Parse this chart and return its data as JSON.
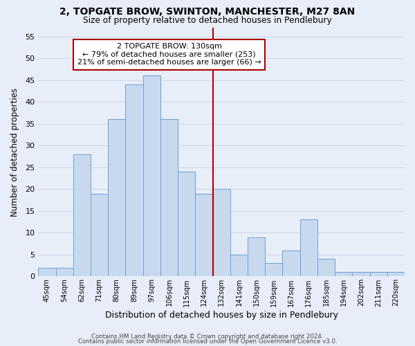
{
  "title": "2, TOPGATE BROW, SWINTON, MANCHESTER, M27 8AN",
  "subtitle": "Size of property relative to detached houses in Pendlebury",
  "xlabel": "Distribution of detached houses by size in Pendlebury",
  "ylabel": "Number of detached properties",
  "categories": [
    "45sqm",
    "54sqm",
    "62sqm",
    "71sqm",
    "80sqm",
    "89sqm",
    "97sqm",
    "106sqm",
    "115sqm",
    "124sqm",
    "132sqm",
    "141sqm",
    "150sqm",
    "159sqm",
    "167sqm",
    "176sqm",
    "185sqm",
    "194sqm",
    "202sqm",
    "211sqm",
    "220sqm"
  ],
  "values": [
    2,
    2,
    28,
    19,
    36,
    44,
    46,
    36,
    24,
    19,
    20,
    5,
    9,
    3,
    6,
    13,
    4,
    1,
    1,
    1,
    1
  ],
  "bar_color": "#c8d9ee",
  "bar_edge_color": "#6a9fd8",
  "vline_index": 10,
  "vline_color": "#aa0000",
  "annotation_text": "2 TOPGATE BROW: 130sqm\n← 79% of detached houses are smaller (253)\n21% of semi-detached houses are larger (66) →",
  "annotation_box_color": "white",
  "annotation_box_edge": "#aa0000",
  "ylim": [
    0,
    57
  ],
  "yticks": [
    0,
    5,
    10,
    15,
    20,
    25,
    30,
    35,
    40,
    45,
    50,
    55
  ],
  "background_color": "#e8eef8",
  "grid_color": "#d0d8e8",
  "footer1": "Contains HM Land Registry data © Crown copyright and database right 2024.",
  "footer2": "Contains public sector information licensed under the Open Government Licence v3.0."
}
